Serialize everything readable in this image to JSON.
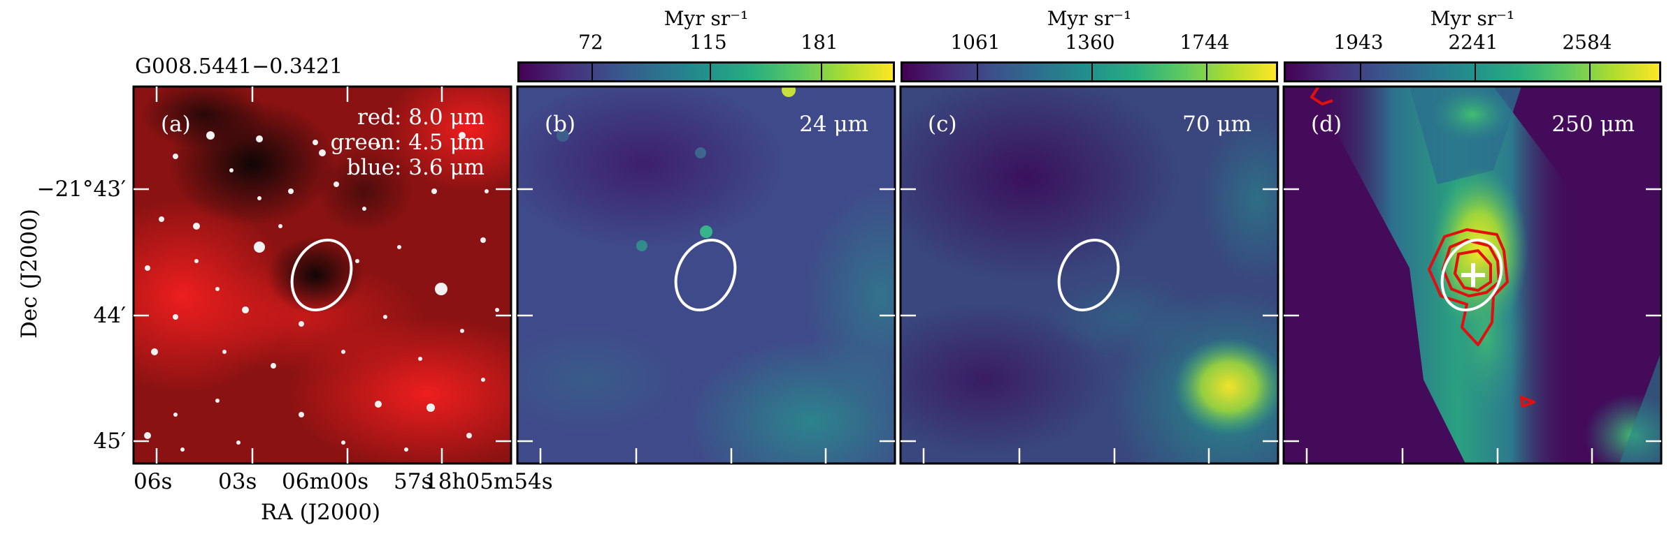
{
  "source_title": "G008.5441−0.3421",
  "panels": [
    {
      "id": "a",
      "label": "(a)",
      "legend": [
        "red: 8.0 μm",
        "green: 4.5 μm",
        "blue: 3.6 μm"
      ]
    },
    {
      "id": "b",
      "label": "(b)",
      "band": "24 μm"
    },
    {
      "id": "c",
      "label": "(c)",
      "band": "70 μm"
    },
    {
      "id": "d",
      "label": "(d)",
      "band": "250 μm"
    }
  ],
  "colorbars": [
    {
      "unit": "Myr sr⁻¹",
      "ticks": [
        "72",
        "115",
        "181"
      ]
    },
    {
      "unit": "Myr sr⁻¹",
      "ticks": [
        "1061",
        "1360",
        "1744"
      ]
    },
    {
      "unit": "Myr sr⁻¹",
      "ticks": [
        "1943",
        "2241",
        "2584"
      ]
    }
  ],
  "axes": {
    "ylabel": "Dec (J2000)",
    "xlabel": "RA (J2000)",
    "yticks": [
      "−21°43′",
      "44′",
      "45′"
    ],
    "xticks": [
      "06s",
      "03s",
      "06m00s",
      "57s",
      "18h05m54s"
    ]
  },
  "colors": {
    "contour": "#e01010",
    "ellipse": "#ffffff",
    "frame": "#000000"
  }
}
